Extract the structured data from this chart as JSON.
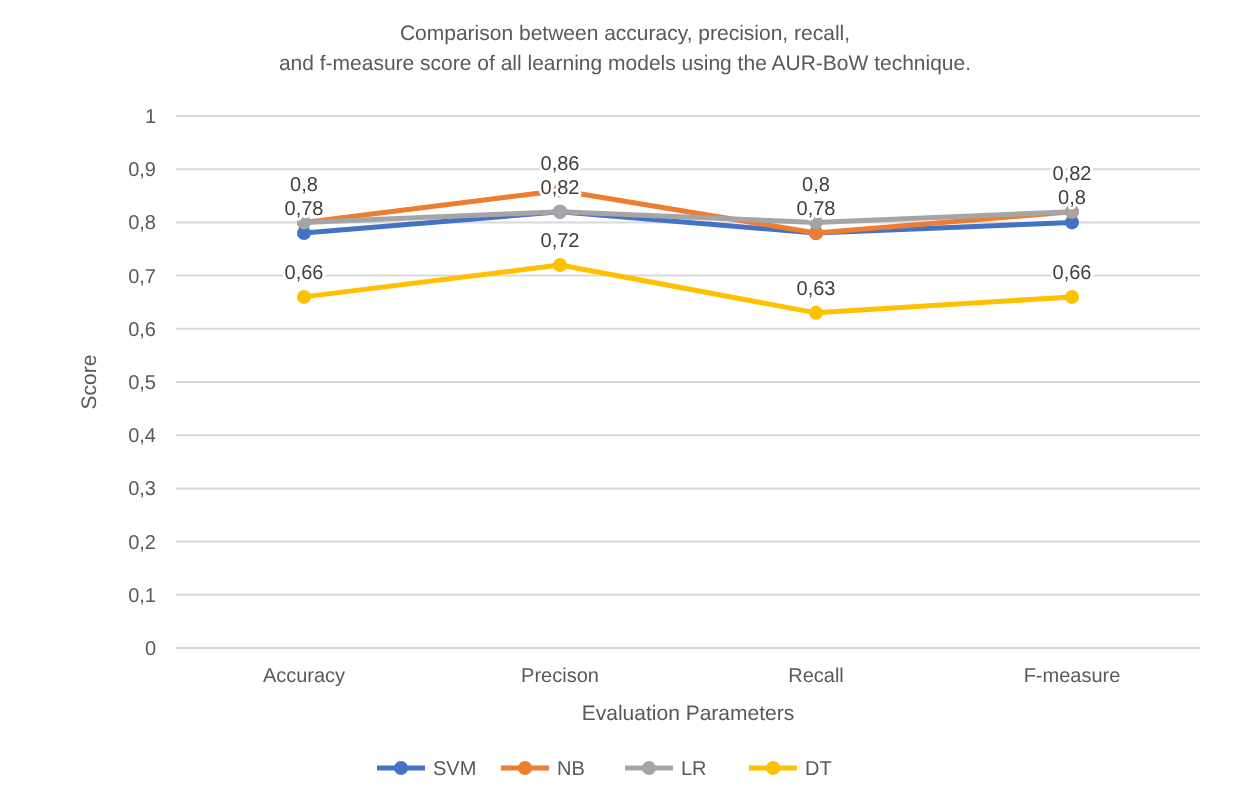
{
  "chart_data": {
    "type": "line",
    "title": "Comparison between accuracy, precision, recall,\nand f-measure score of all learning models using the AUR-BoW technique.",
    "xlabel": "Evaluation Parameters",
    "ylabel": "Score",
    "categories": [
      "Accuracy",
      "Precison",
      "Recall",
      "F-measure"
    ],
    "ylim": [
      0,
      1
    ],
    "yticks": [
      0,
      {
        "value": 0.1,
        "label": "0,1"
      },
      {
        "value": 0.2,
        "label": "0,2"
      },
      {
        "value": 0.3,
        "label": "0,3"
      },
      {
        "value": 0.4,
        "label": "0,4"
      },
      {
        "value": 0.5,
        "label": "0,5"
      },
      {
        "value": 0.6,
        "label": "0,6"
      },
      {
        "value": 0.7,
        "label": "0,7"
      },
      {
        "value": 0.8,
        "label": "0,8"
      },
      {
        "value": 0.9,
        "label": "0,9"
      },
      1
    ],
    "grid": "y",
    "legend": "bottom",
    "marker": "circle",
    "series": [
      {
        "name": "SVM",
        "color": "#4472c4",
        "values": [
          0.78,
          0.82,
          0.78,
          0.8
        ],
        "value_labels": [
          "0,78",
          "0,82",
          "0,78",
          "0,8"
        ]
      },
      {
        "name": "NB",
        "color": "#ed7d31",
        "values": [
          0.8,
          0.86,
          0.78,
          0.82
        ],
        "value_labels": [
          "0,8",
          "0,86",
          null,
          "0,82"
        ]
      },
      {
        "name": "LR",
        "color": "#a5a5a5",
        "values": [
          0.8,
          0.82,
          0.8,
          0.82
        ],
        "value_labels": [
          null,
          null,
          "0,8",
          null
        ]
      },
      {
        "name": "DT",
        "color": "#ffc000",
        "values": [
          0.66,
          0.72,
          0.63,
          0.66
        ],
        "value_labels": [
          "0,66",
          "0,72",
          "0,63",
          "0,66"
        ]
      }
    ]
  }
}
